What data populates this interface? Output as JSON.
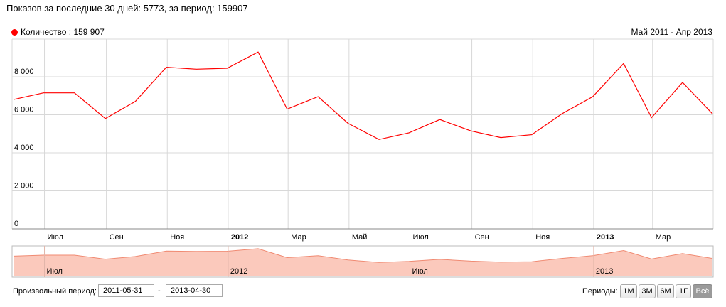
{
  "header": {
    "title": "Показов за последние 30 дней: 5773, за период: 159907"
  },
  "legend": {
    "label": "Количество : 159 907",
    "color": "#ff0000"
  },
  "range_label": "Май 2011 - Апр 2013",
  "chart_data": {
    "type": "line",
    "title": "",
    "xlabel": "",
    "ylabel": "",
    "ylim": [
      0,
      10000
    ],
    "y_ticks": [
      "0",
      "2 000",
      "4 000",
      "6 000",
      "8 000"
    ],
    "x_tick_labels": [
      {
        "label": "Июл",
        "bold": false
      },
      {
        "label": "Сен",
        "bold": false
      },
      {
        "label": "Ноя",
        "bold": false
      },
      {
        "label": "2012",
        "bold": true
      },
      {
        "label": "Мар",
        "bold": false
      },
      {
        "label": "Май",
        "bold": false
      },
      {
        "label": "Июл",
        "bold": false
      },
      {
        "label": "Сен",
        "bold": false
      },
      {
        "label": "Ноя",
        "bold": false
      },
      {
        "label": "2013",
        "bold": true
      },
      {
        "label": "Мар",
        "bold": false
      }
    ],
    "series": [
      {
        "color": "#ff0000",
        "points": [
          {
            "x": "2011-05-31",
            "y": 6800
          },
          {
            "x": "2011-06-30",
            "y": 7150
          },
          {
            "x": "2011-07-31",
            "y": 7150
          },
          {
            "x": "2011-08-31",
            "y": 5800
          },
          {
            "x": "2011-09-30",
            "y": 6700
          },
          {
            "x": "2011-10-31",
            "y": 8500
          },
          {
            "x": "2011-11-30",
            "y": 8400
          },
          {
            "x": "2011-12-31",
            "y": 8450
          },
          {
            "x": "2012-01-31",
            "y": 9300
          },
          {
            "x": "2012-02-29",
            "y": 6300
          },
          {
            "x": "2012-03-31",
            "y": 6950
          },
          {
            "x": "2012-04-30",
            "y": 5550
          },
          {
            "x": "2012-05-31",
            "y": 4700
          },
          {
            "x": "2012-06-30",
            "y": 5050
          },
          {
            "x": "2012-07-31",
            "y": 5750
          },
          {
            "x": "2012-08-31",
            "y": 5150
          },
          {
            "x": "2012-09-30",
            "y": 4800
          },
          {
            "x": "2012-10-31",
            "y": 4950
          },
          {
            "x": "2012-11-30",
            "y": 6050
          },
          {
            "x": "2012-12-31",
            "y": 6950
          },
          {
            "x": "2013-01-31",
            "y": 8700
          },
          {
            "x": "2013-02-28",
            "y": 5850
          },
          {
            "x": "2013-03-31",
            "y": 7700
          },
          {
            "x": "2013-04-30",
            "y": 6050
          }
        ]
      }
    ],
    "grid": true,
    "legend_position": "top-left"
  },
  "navigator": {
    "labels": [
      {
        "label": "Июл"
      },
      {
        "label": "2012"
      },
      {
        "label": "Июл"
      },
      {
        "label": "2013"
      }
    ],
    "fill_color": "#fbc9bc",
    "line_color": "#f08a72"
  },
  "controls": {
    "custom_period_label": "Произвольный период:",
    "date_from": "2011-05-31",
    "date_to": "2013-04-30",
    "dash": "-",
    "periods_label": "Периоды:",
    "period_buttons": [
      "1М",
      "3М",
      "6М",
      "1Г",
      "Всё"
    ],
    "active_period": "Всё"
  }
}
